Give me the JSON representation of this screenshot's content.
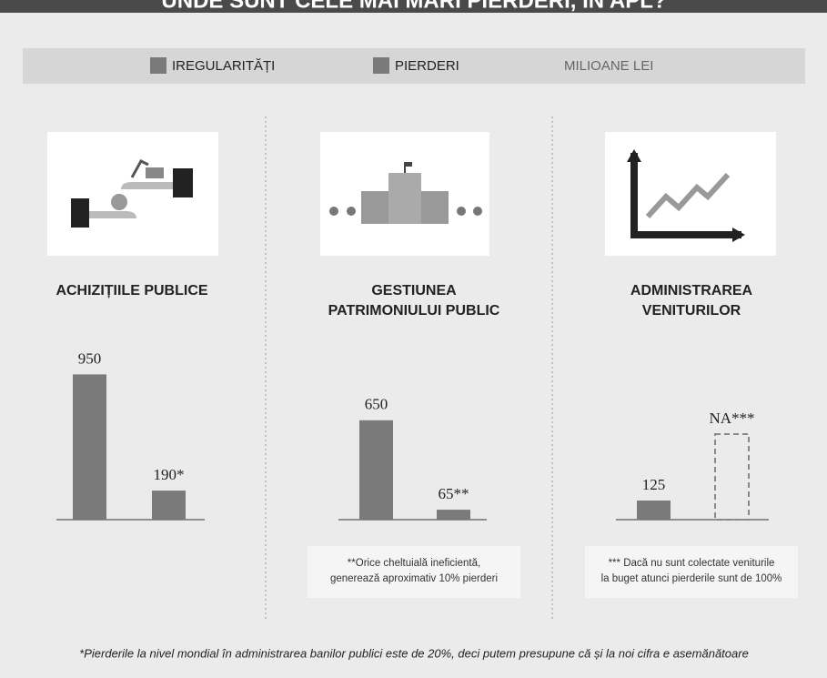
{
  "title": "UNDE SUNT CELE MAI MARI PIERDERI, ÎN APL?",
  "legend": {
    "items": [
      "IREGULARITĂȚI",
      "PIERDERI"
    ],
    "colors": [
      "#7a7a7a",
      "#7a7a7a"
    ],
    "unit": "MILIOANE LEI"
  },
  "footnote": "*Pierderile la nivel mondial în administrarea banilor publici este de 20%, deci putem presupune că și la noi cifra e asemănătoare",
  "chart_data": [
    {
      "type": "bar",
      "title": [
        "ACHIZIȚIILE PUBLICE"
      ],
      "values": [
        950,
        190
      ],
      "value_labels": [
        "950",
        "190*"
      ],
      "color": "#7a7a7a",
      "ylim": [
        0,
        1000
      ]
    },
    {
      "type": "bar",
      "title": [
        "GESTIUNEA",
        "PATRIMONIULUI PUBLIC"
      ],
      "values": [
        650,
        65
      ],
      "value_labels": [
        "650",
        "65**"
      ],
      "color": "#7a7a7a",
      "ylim": [
        0,
        1000
      ],
      "note": [
        "**Orice cheltuială ineficientă,",
        "generează aproximativ 10% pierderi"
      ]
    },
    {
      "type": "bar",
      "title": [
        "ADMINISTRAREA",
        "VENITURILOR"
      ],
      "values": [
        125,
        null
      ],
      "value_labels": [
        "125",
        "NA***"
      ],
      "color": "#7a7a7a",
      "ylim": [
        0,
        1000
      ],
      "note": [
        "*** Dacă nu sunt colectate veniturile",
        "la buget atunci pierderile sunt de 100%"
      ]
    }
  ]
}
